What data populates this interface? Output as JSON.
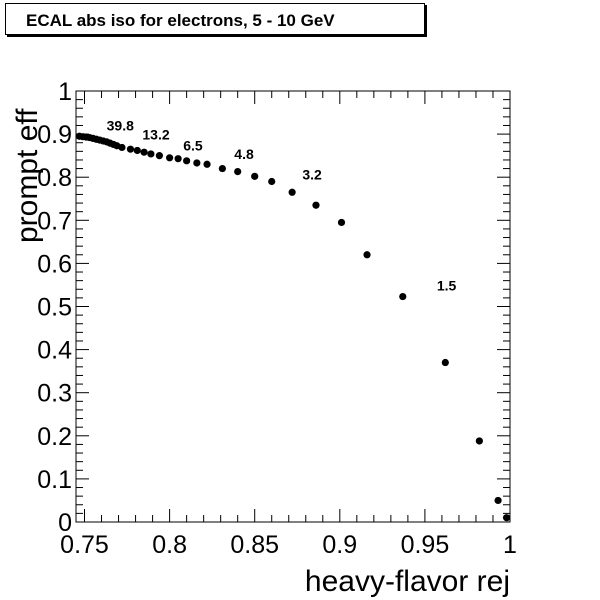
{
  "chart_data": {
    "type": "scatter",
    "title": "ECAL abs iso for electrons, 5 - 10 GeV",
    "xlabel": "heavy-flavor rej",
    "ylabel": "prompt eff",
    "xlim": [
      0.745,
      1.0
    ],
    "ylim": [
      0,
      1
    ],
    "xticks": [
      "0.75",
      "0.8",
      "0.85",
      "0.9",
      "0.95",
      "1"
    ],
    "yticks": [
      "0",
      "0.1",
      "0.2",
      "0.3",
      "0.4",
      "0.5",
      "0.6",
      "0.7",
      "0.8",
      "0.9",
      "1"
    ],
    "grid": false,
    "points": [
      {
        "x": 0.747,
        "y": 0.895
      },
      {
        "x": 0.749,
        "y": 0.894
      },
      {
        "x": 0.751,
        "y": 0.893
      },
      {
        "x": 0.753,
        "y": 0.892
      },
      {
        "x": 0.755,
        "y": 0.89
      },
      {
        "x": 0.757,
        "y": 0.888
      },
      {
        "x": 0.759,
        "y": 0.886
      },
      {
        "x": 0.761,
        "y": 0.884
      },
      {
        "x": 0.763,
        "y": 0.882
      },
      {
        "x": 0.765,
        "y": 0.879
      },
      {
        "x": 0.767,
        "y": 0.876
      },
      {
        "x": 0.769,
        "y": 0.873
      },
      {
        "x": 0.772,
        "y": 0.869
      },
      {
        "x": 0.777,
        "y": 0.865
      },
      {
        "x": 0.781,
        "y": 0.862
      },
      {
        "x": 0.785,
        "y": 0.858
      },
      {
        "x": 0.789,
        "y": 0.854
      },
      {
        "x": 0.794,
        "y": 0.85
      },
      {
        "x": 0.8,
        "y": 0.845
      },
      {
        "x": 0.805,
        "y": 0.843
      },
      {
        "x": 0.81,
        "y": 0.838
      },
      {
        "x": 0.816,
        "y": 0.833
      },
      {
        "x": 0.822,
        "y": 0.83
      },
      {
        "x": 0.831,
        "y": 0.82
      },
      {
        "x": 0.84,
        "y": 0.813
      },
      {
        "x": 0.85,
        "y": 0.802
      },
      {
        "x": 0.86,
        "y": 0.79
      },
      {
        "x": 0.872,
        "y": 0.765
      },
      {
        "x": 0.886,
        "y": 0.735
      },
      {
        "x": 0.901,
        "y": 0.695
      },
      {
        "x": 0.916,
        "y": 0.62
      },
      {
        "x": 0.937,
        "y": 0.523
      },
      {
        "x": 0.962,
        "y": 0.37
      },
      {
        "x": 0.982,
        "y": 0.188
      },
      {
        "x": 0.993,
        "y": 0.05
      },
      {
        "x": 0.998,
        "y": 0.01
      }
    ],
    "annotations": [
      {
        "text": "39.8",
        "x": 0.763,
        "y": 0.908
      },
      {
        "text": "13.2",
        "x": 0.784,
        "y": 0.888
      },
      {
        "text": "6.5",
        "x": 0.808,
        "y": 0.862
      },
      {
        "text": "4.8",
        "x": 0.838,
        "y": 0.842
      },
      {
        "text": "3.2",
        "x": 0.878,
        "y": 0.795
      },
      {
        "text": "1.5",
        "x": 0.957,
        "y": 0.537
      }
    ]
  }
}
